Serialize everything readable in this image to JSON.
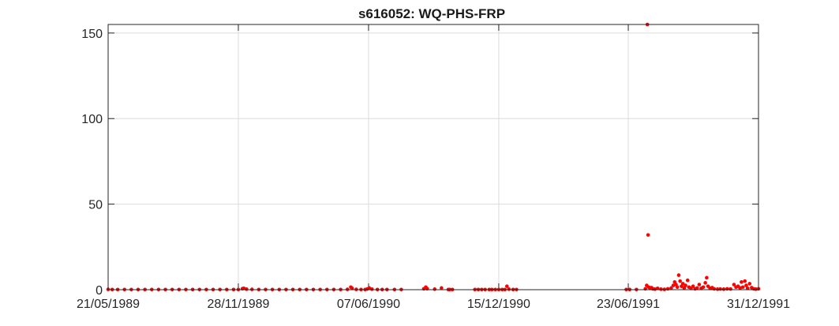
{
  "chart_data": {
    "type": "scatter",
    "title": "s616052: WQ-PHS-FRP",
    "xlabel": "",
    "ylabel": "",
    "x_axis_type": "date",
    "xlim": [
      "1989-05-21",
      "1991-12-31"
    ],
    "ylim": [
      0,
      155
    ],
    "x_ticks": [
      {
        "date": "1989-05-21",
        "label": "21/05/1989"
      },
      {
        "date": "1989-11-28",
        "label": "28/11/1989"
      },
      {
        "date": "1990-06-07",
        "label": "07/06/1990"
      },
      {
        "date": "1990-12-15",
        "label": "15/12/1990"
      },
      {
        "date": "1991-06-23",
        "label": "23/06/1991"
      },
      {
        "date": "1991-12-31",
        "label": "31/12/1991"
      }
    ],
    "y_ticks": [
      0,
      50,
      100,
      150
    ],
    "grid": true,
    "marker_color": "#ff0000",
    "series": [
      {
        "points": [
          [
            "1989-05-21",
            0.2
          ],
          [
            "1989-05-27",
            0.1
          ],
          [
            "1989-06-04",
            0.1
          ],
          [
            "1989-06-14",
            0.1
          ],
          [
            "1989-06-24",
            0.1
          ],
          [
            "1989-07-04",
            0.1
          ],
          [
            "1989-07-14",
            0.1
          ],
          [
            "1989-07-24",
            0.1
          ],
          [
            "1989-08-03",
            0.1
          ],
          [
            "1989-08-13",
            0.1
          ],
          [
            "1989-08-23",
            0.1
          ],
          [
            "1989-09-02",
            0.1
          ],
          [
            "1989-09-12",
            0.1
          ],
          [
            "1989-09-22",
            0.1
          ],
          [
            "1989-10-02",
            0.1
          ],
          [
            "1989-10-12",
            0.1
          ],
          [
            "1989-10-22",
            0.1
          ],
          [
            "1989-11-01",
            0.1
          ],
          [
            "1989-11-11",
            0.1
          ],
          [
            "1989-11-21",
            0.1
          ],
          [
            "1989-11-28",
            0.1
          ],
          [
            "1989-12-04",
            0.6
          ],
          [
            "1989-12-06",
            0.8
          ],
          [
            "1989-12-10",
            0.3
          ],
          [
            "1989-12-18",
            0.2
          ],
          [
            "1989-12-28",
            0.1
          ],
          [
            "1990-01-07",
            0.1
          ],
          [
            "1990-01-17",
            0.1
          ],
          [
            "1990-01-27",
            0.1
          ],
          [
            "1990-02-06",
            0.1
          ],
          [
            "1990-02-16",
            0.1
          ],
          [
            "1990-02-26",
            0.1
          ],
          [
            "1990-03-08",
            0.1
          ],
          [
            "1990-03-18",
            0.1
          ],
          [
            "1990-03-28",
            0.1
          ],
          [
            "1990-04-07",
            0.1
          ],
          [
            "1990-04-17",
            0.1
          ],
          [
            "1990-04-27",
            0.1
          ],
          [
            "1990-05-07",
            0.2
          ],
          [
            "1990-05-12",
            1.5
          ],
          [
            "1990-05-14",
            0.8
          ],
          [
            "1990-05-20",
            0.2
          ],
          [
            "1990-05-27",
            0.1
          ],
          [
            "1990-06-02",
            0.1
          ],
          [
            "1990-06-05",
            0.4
          ],
          [
            "1990-06-08",
            1.0
          ],
          [
            "1990-06-12",
            0.3
          ],
          [
            "1990-06-20",
            0.1
          ],
          [
            "1990-06-27",
            0.1
          ],
          [
            "1990-07-04",
            0.1
          ],
          [
            "1990-07-15",
            0.1
          ],
          [
            "1990-07-25",
            0.1
          ],
          [
            "1990-08-27",
            0.5
          ],
          [
            "1990-08-30",
            1.5
          ],
          [
            "1990-09-01",
            0.6
          ],
          [
            "1990-09-12",
            0.3
          ],
          [
            "1990-09-22",
            1.0
          ],
          [
            "1990-10-02",
            0.1
          ],
          [
            "1990-10-04",
            0.1
          ],
          [
            "1990-10-08",
            0.1
          ],
          [
            "1990-11-10",
            0.1
          ],
          [
            "1990-11-15",
            0.1
          ],
          [
            "1990-11-20",
            0.1
          ],
          [
            "1990-11-25",
            0.1
          ],
          [
            "1990-12-01",
            0.1
          ],
          [
            "1990-12-05",
            0.1
          ],
          [
            "1990-12-10",
            0.1
          ],
          [
            "1990-12-15",
            0.1
          ],
          [
            "1990-12-20",
            0.1
          ],
          [
            "1990-12-24",
            0.1
          ],
          [
            "1990-12-27",
            2.0
          ],
          [
            "1990-12-30",
            0.3
          ],
          [
            "1991-01-05",
            0.1
          ],
          [
            "1991-01-10",
            0.1
          ],
          [
            "1991-06-20",
            0.1
          ],
          [
            "1991-06-25",
            0.1
          ],
          [
            "1991-07-05",
            0.1
          ],
          [
            "1991-07-18",
            0.5
          ],
          [
            "1991-07-20",
            2.5
          ],
          [
            "1991-07-21",
            155
          ],
          [
            "1991-07-22",
            32
          ],
          [
            "1991-07-23",
            1.5
          ],
          [
            "1991-07-25",
            0.8
          ],
          [
            "1991-07-27",
            1.2
          ],
          [
            "1991-07-29",
            0.5
          ],
          [
            "1991-08-01",
            0.3
          ],
          [
            "1991-08-05",
            0.8
          ],
          [
            "1991-08-10",
            0.3
          ],
          [
            "1991-08-15",
            0.2
          ],
          [
            "1991-08-20",
            0.5
          ],
          [
            "1991-08-25",
            1.0
          ],
          [
            "1991-08-28",
            2.5
          ],
          [
            "1991-08-30",
            4.5
          ],
          [
            "1991-09-01",
            3.0
          ],
          [
            "1991-09-03",
            1.5
          ],
          [
            "1991-09-05",
            8.5
          ],
          [
            "1991-09-07",
            5.0
          ],
          [
            "1991-09-09",
            2.0
          ],
          [
            "1991-09-11",
            3.5
          ],
          [
            "1991-09-13",
            1.0
          ],
          [
            "1991-09-15",
            2.5
          ],
          [
            "1991-09-18",
            5.5
          ],
          [
            "1991-09-20",
            1.5
          ],
          [
            "1991-09-23",
            0.8
          ],
          [
            "1991-09-26",
            2.0
          ],
          [
            "1991-09-29",
            0.5
          ],
          [
            "1991-10-02",
            1.0
          ],
          [
            "1991-10-05",
            3.0
          ],
          [
            "1991-10-08",
            0.8
          ],
          [
            "1991-10-11",
            1.5
          ],
          [
            "1991-10-14",
            4.0
          ],
          [
            "1991-10-16",
            7.0
          ],
          [
            "1991-10-18",
            2.0
          ],
          [
            "1991-10-21",
            0.8
          ],
          [
            "1991-10-24",
            1.2
          ],
          [
            "1991-10-27",
            0.5
          ],
          [
            "1991-11-01",
            0.3
          ],
          [
            "1991-11-05",
            0.4
          ],
          [
            "1991-11-10",
            0.3
          ],
          [
            "1991-11-15",
            0.5
          ],
          [
            "1991-11-20",
            0.4
          ],
          [
            "1991-11-25",
            3.0
          ],
          [
            "1991-11-28",
            1.5
          ],
          [
            "1991-12-01",
            2.0
          ],
          [
            "1991-12-04",
            1.0
          ],
          [
            "1991-12-06",
            4.5
          ],
          [
            "1991-12-08",
            1.5
          ],
          [
            "1991-12-11",
            5.0
          ],
          [
            "1991-12-13",
            2.5
          ],
          [
            "1991-12-15",
            0.8
          ],
          [
            "1991-12-18",
            3.5
          ],
          [
            "1991-12-21",
            1.2
          ],
          [
            "1991-12-24",
            0.5
          ],
          [
            "1991-12-27",
            0.3
          ],
          [
            "1991-12-31",
            0.5
          ]
        ]
      }
    ]
  }
}
